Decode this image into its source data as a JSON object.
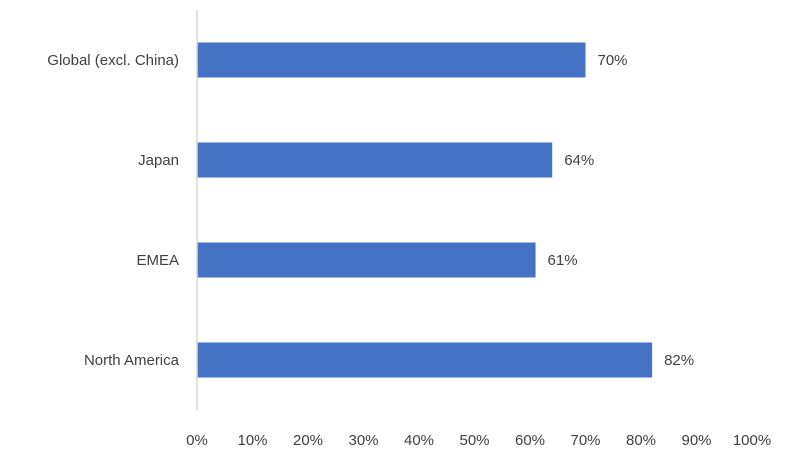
{
  "chart_data": {
    "type": "bar",
    "orientation": "horizontal",
    "categories": [
      "Global (excl. China)",
      "Japan",
      "EMEA",
      "North America"
    ],
    "values": [
      70,
      64,
      61,
      82
    ],
    "value_labels": [
      "70%",
      "64%",
      "61%",
      "82%"
    ],
    "xlim": [
      0,
      100
    ],
    "x_ticks": [
      "0%",
      "10%",
      "20%",
      "30%",
      "40%",
      "50%",
      "60%",
      "70%",
      "80%",
      "90%",
      "100%"
    ],
    "bar_color": "#4472C4",
    "axis_color": "#D9D9D9",
    "text_color": "#404040",
    "grid": false,
    "legend": "none"
  }
}
